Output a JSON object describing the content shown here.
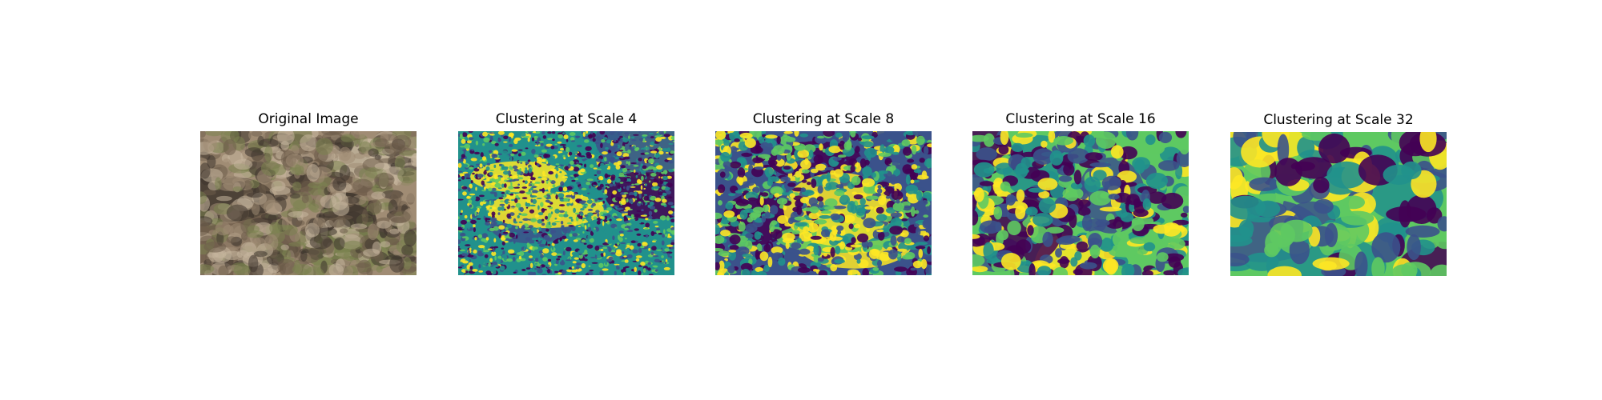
{
  "panels": [
    {
      "title": "Original Image",
      "image": "aerial-photo",
      "colors": [
        "#a08c74",
        "#6e5c4a",
        "#3e352d",
        "#7c8450",
        "#c6b79f"
      ]
    },
    {
      "title": "Clustering at Scale 4",
      "image": "cluster-map",
      "colors": [
        "#21918c",
        "#3b528b",
        "#fde725",
        "#5ec962",
        "#440154"
      ]
    },
    {
      "title": "Clustering at Scale 8",
      "image": "cluster-map",
      "colors": [
        "#3b528b",
        "#440154",
        "#fde725",
        "#5ec962",
        "#21918c"
      ]
    },
    {
      "title": "Clustering at Scale 16",
      "image": "cluster-map",
      "colors": [
        "#5ec962",
        "#440154",
        "#3b528b",
        "#fde725",
        "#21918c"
      ]
    },
    {
      "title": "Clustering at Scale 32",
      "image": "cluster-map",
      "colors": [
        "#5ec962",
        "#21918c",
        "#3b528b",
        "#440154",
        "#fde725"
      ]
    }
  ]
}
